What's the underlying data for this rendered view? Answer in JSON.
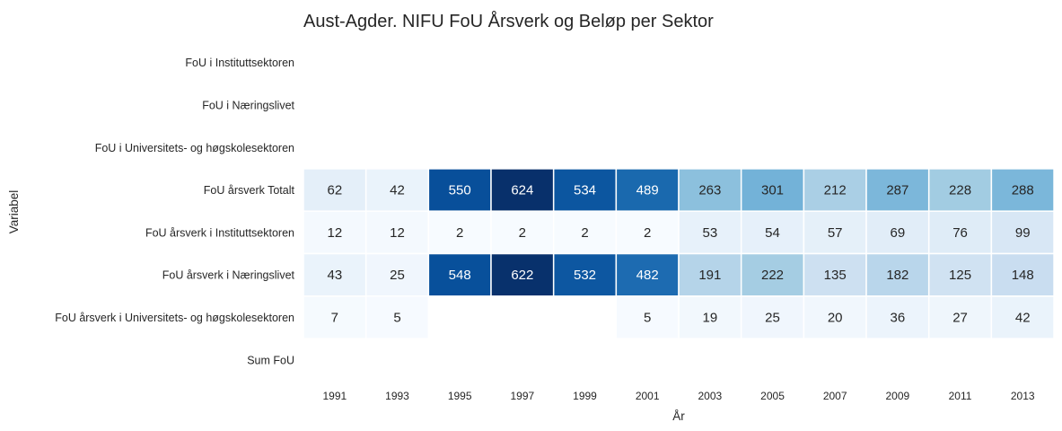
{
  "chart_data": {
    "type": "heatmap",
    "title": "Aust-Agder. NIFU FoU Årsverk og Beløp per Sektor",
    "xlabel": "År",
    "ylabel": "Variabel",
    "x": [
      "1991",
      "1993",
      "1995",
      "1997",
      "1999",
      "2001",
      "2003",
      "2005",
      "2007",
      "2009",
      "2011",
      "2013"
    ],
    "y": [
      "FoU i Instituttsektoren",
      "FoU i Næringslivet",
      "FoU i Universitets- og høgskolesektoren",
      "FoU årsverk Totalt",
      "FoU årsverk i Instituttsektoren",
      "FoU årsverk i Næringslivet",
      "FoU årsverk i Universitets- og høgskolesektoren",
      "Sum FoU"
    ],
    "values": [
      [
        null,
        null,
        null,
        null,
        null,
        null,
        null,
        null,
        null,
        null,
        null,
        null
      ],
      [
        null,
        null,
        null,
        null,
        null,
        null,
        null,
        null,
        null,
        null,
        null,
        null
      ],
      [
        null,
        null,
        null,
        null,
        null,
        null,
        null,
        null,
        null,
        null,
        null,
        null
      ],
      [
        62,
        42,
        550,
        624,
        534,
        489,
        263,
        301,
        212,
        287,
        228,
        288
      ],
      [
        12,
        12,
        2,
        2,
        2,
        2,
        53,
        54,
        57,
        69,
        76,
        99
      ],
      [
        43,
        25,
        548,
        622,
        532,
        482,
        191,
        222,
        135,
        182,
        125,
        148
      ],
      [
        7,
        5,
        null,
        null,
        null,
        5,
        19,
        25,
        20,
        36,
        27,
        42
      ],
      [
        null,
        null,
        null,
        null,
        null,
        null,
        null,
        null,
        null,
        null,
        null,
        null
      ]
    ],
    "colormap": "Blues",
    "vmin": 2,
    "vmax": 624,
    "colorbar": false,
    "cell_border_color": "#ffffff"
  }
}
